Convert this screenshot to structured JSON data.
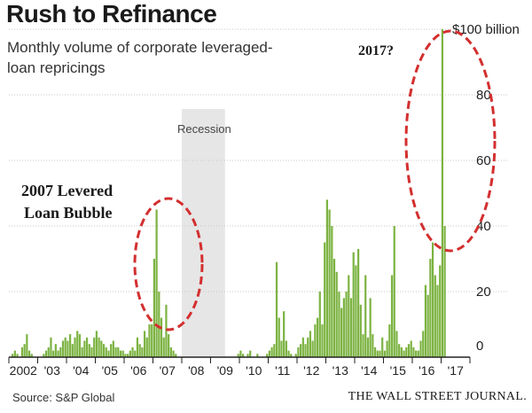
{
  "title": "Rush to Refinance",
  "subtitle": "Monthly volume of corporate leveraged-loan repricings",
  "source": "Source: S&P Global",
  "publisher": "THE WALL STREET JOURNAL.",
  "colors": {
    "bar": "#7cb342",
    "recession": "#e6e6e6",
    "annotation_ellipse": "#d32f2f",
    "grid": "#c8c8c8"
  },
  "chart_data": {
    "type": "bar",
    "title": "Rush to Refinance",
    "ylabel": "",
    "y_unit_label": "$100 billion",
    "ylim": [
      0,
      100
    ],
    "yticks": [
      0,
      20,
      40,
      60,
      80,
      100
    ],
    "ytick_labels": [
      "0",
      "20",
      "40",
      "60",
      "80",
      "$100 billion"
    ],
    "xtick_labels": [
      "2002",
      "'03",
      "'04",
      "'05",
      "'06",
      "'07",
      "'08",
      "'09",
      "'10",
      "'11",
      "'12",
      "'13",
      "'14",
      "'15",
      "'16",
      "'17"
    ],
    "grid": true,
    "recession_label": "Recession",
    "recession_span": [
      "2008-01",
      "2009-06"
    ],
    "series": [
      {
        "start": "2002-01",
        "values": [
          0,
          1,
          2,
          1,
          0,
          3,
          4,
          7,
          2,
          1,
          0,
          0,
          0,
          0,
          1,
          2,
          3,
          6,
          2,
          4,
          2,
          3,
          5,
          6,
          5,
          7,
          4,
          6,
          8,
          7,
          3,
          5,
          6,
          4,
          3,
          6,
          8,
          6,
          5,
          4,
          3,
          2,
          4,
          5,
          3,
          3,
          2,
          2,
          1,
          1,
          2,
          3,
          2,
          6,
          4,
          3,
          8,
          6,
          10,
          10,
          30,
          45,
          20,
          12,
          6,
          16,
          7,
          3,
          2,
          1,
          0,
          0,
          0,
          0,
          0,
          0,
          0,
          0,
          0,
          0,
          0,
          0,
          0,
          0,
          0,
          0,
          0,
          0,
          0,
          0,
          0,
          0,
          0,
          0,
          0,
          1,
          2,
          1,
          0,
          1,
          2,
          0,
          0,
          1,
          0,
          0,
          0,
          1,
          2,
          3,
          4,
          29,
          12,
          5,
          14,
          5,
          2,
          1,
          0,
          1,
          3,
          4,
          6,
          4,
          6,
          8,
          5,
          10,
          12,
          20,
          10,
          35,
          48,
          45,
          40,
          30,
          26,
          20,
          15,
          18,
          20,
          25,
          18,
          32,
          28,
          33,
          16,
          7,
          25,
          6,
          18,
          7,
          3,
          2,
          2,
          6,
          2,
          5,
          10,
          25,
          40,
          8,
          4,
          3,
          2,
          3,
          4,
          5,
          3,
          2,
          2,
          5,
          8,
          22,
          19,
          30,
          35,
          25,
          22,
          28,
          100,
          40
        ]
      }
    ],
    "annotations": [
      "2007 Levered Loan Bubble",
      "2017?"
    ]
  }
}
